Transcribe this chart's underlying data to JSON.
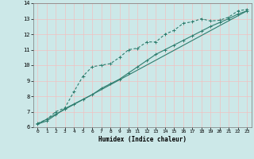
{
  "title": "",
  "xlabel": "Humidex (Indice chaleur)",
  "ylabel": "",
  "bg_color": "#cce8e8",
  "grid_color": "#f0c0c0",
  "line_color": "#2e7d6e",
  "xlim": [
    -0.5,
    23.5
  ],
  "ylim": [
    6,
    14
  ],
  "xticks": [
    0,
    1,
    2,
    3,
    4,
    5,
    6,
    7,
    8,
    9,
    10,
    11,
    12,
    13,
    14,
    15,
    16,
    17,
    18,
    19,
    20,
    21,
    22,
    23
  ],
  "yticks": [
    6,
    7,
    8,
    9,
    10,
    11,
    12,
    13,
    14
  ],
  "line1_x": [
    0,
    1,
    2,
    3,
    4,
    5,
    6,
    7,
    8,
    9,
    10,
    11,
    12,
    13,
    14,
    15,
    16,
    17,
    18,
    19,
    20,
    21,
    22,
    23
  ],
  "line1_y": [
    6.25,
    6.5,
    7.0,
    7.25,
    8.3,
    9.3,
    9.9,
    10.0,
    10.1,
    10.5,
    11.0,
    11.1,
    11.5,
    11.5,
    12.0,
    12.25,
    12.7,
    12.8,
    13.0,
    12.85,
    12.9,
    13.1,
    13.5,
    13.6
  ],
  "line2_x": [
    0,
    1,
    2,
    3,
    4,
    5,
    6,
    7,
    8,
    9,
    10,
    11,
    12,
    13,
    14,
    15,
    16,
    17,
    18,
    19,
    20,
    21,
    22,
    23
  ],
  "line2_y": [
    6.2,
    6.4,
    6.8,
    7.2,
    7.5,
    7.8,
    8.1,
    8.5,
    8.8,
    9.1,
    9.5,
    9.9,
    10.3,
    10.7,
    11.0,
    11.3,
    11.6,
    11.9,
    12.2,
    12.5,
    12.75,
    13.0,
    13.3,
    13.5
  ],
  "line3_x": [
    0,
    23
  ],
  "line3_y": [
    6.2,
    13.5
  ]
}
